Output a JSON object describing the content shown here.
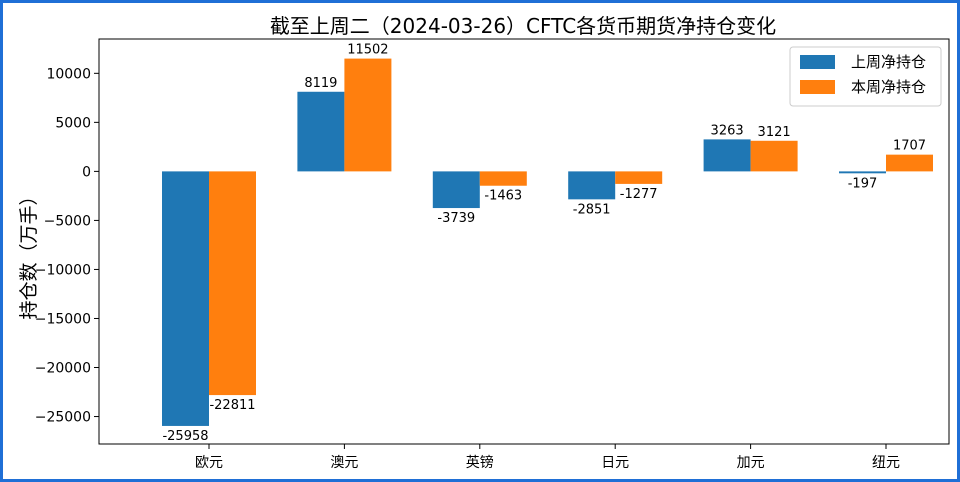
{
  "chart_data": {
    "type": "bar",
    "title": "截至上周二（2024-03-26）CFTC各货币期货净持仓变化",
    "ylabel": "持仓数（万手）",
    "xlabel": "",
    "categories": [
      "欧元",
      "澳元",
      "英镑",
      "日元",
      "加元",
      "纽元"
    ],
    "series": [
      {
        "name": "上周净持仓",
        "values": [
          -25958,
          8119,
          -3739,
          -2851,
          3263,
          -197
        ],
        "color": "#1f77b4"
      },
      {
        "name": "本周净持仓",
        "values": [
          -22811,
          11502,
          -1463,
          -1277,
          3121,
          1707
        ],
        "color": "#ff7f0e"
      }
    ],
    "ylim": [
      -27800,
      13500
    ],
    "yticks": [
      -25000,
      -20000,
      -15000,
      -10000,
      -5000,
      0,
      5000,
      10000
    ],
    "ytick_labels": [
      "−25000",
      "−20000",
      "−15000",
      "−10000",
      "−5000",
      "0",
      "5000",
      "10000"
    ],
    "legend_position": "top-right",
    "grid": false
  }
}
